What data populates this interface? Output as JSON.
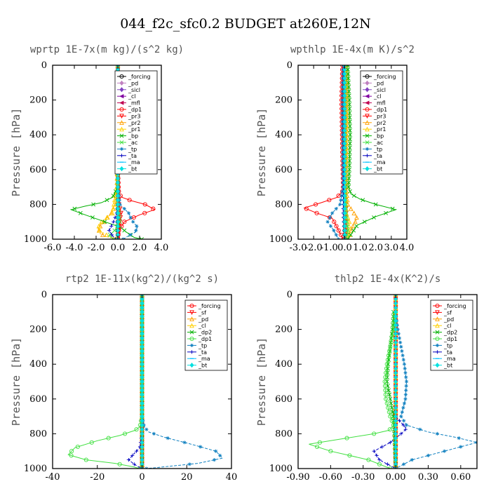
{
  "figure_title": "044_f2c_sfc0.2  BUDGET at260E,12N",
  "chart_data": [
    {
      "type": "line",
      "panel": "top-left",
      "title": "wprtp  1E-7x(m kg)/(s^2 kg)",
      "ylabel": "Pressure [hPa]",
      "xlim": [
        -6,
        4
      ],
      "ylim": [
        1000,
        0
      ],
      "xticks": [
        "-6.0",
        "-4.0",
        "-2.0",
        "0.0",
        "2.0",
        "4.0"
      ],
      "xtick_values": [
        -6,
        -4,
        -2,
        0,
        2,
        4
      ],
      "yticks": [
        "0",
        "200",
        "400",
        "600",
        "800",
        "1000"
      ],
      "ytick_values": [
        0,
        200,
        400,
        600,
        800,
        1000
      ],
      "legend": "top-right",
      "series": [
        {
          "name": "_forcing",
          "color": "#000000",
          "marker": "o",
          "x": [
            0,
            0,
            0,
            0
          ],
          "y": [
            0,
            300,
            700,
            1000
          ]
        },
        {
          "name": "_pd",
          "color": "#c080c0",
          "marker": "d",
          "x": [
            0,
            0
          ],
          "y": [
            0,
            1000
          ]
        },
        {
          "name": "_sicl",
          "color": "#8040c0",
          "marker": "d",
          "x": [
            0,
            0
          ],
          "y": [
            0,
            1000
          ]
        },
        {
          "name": "_cl",
          "color": "#8000a0",
          "marker": "<",
          "x": [
            0,
            0
          ],
          "y": [
            0,
            1000
          ]
        },
        {
          "name": "_mfl",
          "color": "#c00050",
          "marker": "<",
          "x": [
            0,
            0
          ],
          "y": [
            0,
            1000
          ]
        },
        {
          "name": "_dp1",
          "color": "#ff0000",
          "marker": "o",
          "x": [
            0,
            0,
            0.1,
            0.4,
            1.3,
            2.5,
            3.4,
            2.0,
            0.6,
            0.1,
            0
          ],
          "y": [
            0,
            600,
            740,
            760,
            780,
            800,
            830,
            860,
            900,
            950,
            1000
          ]
        },
        {
          "name": "_pr3",
          "color": "#ff0000",
          "marker": "v",
          "x": [
            0,
            0,
            0.1,
            0.3,
            0.2,
            0
          ],
          "y": [
            0,
            700,
            800,
            850,
            900,
            1000
          ]
        },
        {
          "name": "_pr2",
          "color": "#ffa000",
          "marker": "^",
          "x": [
            0,
            0,
            -0.1,
            -0.2,
            -0.6,
            -1.3,
            -1.8,
            -1.6,
            -0.8,
            -0.2
          ],
          "y": [
            0,
            500,
            700,
            800,
            850,
            900,
            940,
            970,
            990,
            1000
          ]
        },
        {
          "name": "_pr1",
          "color": "#ffd000",
          "marker": "^",
          "x": [
            0,
            0,
            -0.1,
            -0.5,
            -1.5,
            -1.9,
            -1.2,
            -0.5,
            -0.1
          ],
          "y": [
            0,
            400,
            700,
            850,
            900,
            940,
            970,
            990,
            1000
          ]
        },
        {
          "name": "_bp",
          "color": "#00b000",
          "marker": "x",
          "x": [
            0,
            0,
            -0.5,
            -1.5,
            -3.0,
            -4.3,
            -3.0,
            -1.2,
            0.2,
            0.8,
            1.5,
            2.2
          ],
          "y": [
            0,
            700,
            760,
            790,
            810,
            830,
            860,
            900,
            930,
            960,
            990,
            1000
          ]
        },
        {
          "name": "_ac",
          "color": "#40e040",
          "marker": "x",
          "x": [
            0,
            0,
            0.2,
            -0.3,
            -0.8,
            -0.4
          ],
          "y": [
            0,
            800,
            900,
            950,
            980,
            1000
          ]
        },
        {
          "name": "_tp",
          "color": "#1080c0",
          "marker": "*",
          "x": [
            0,
            0,
            0.2,
            1.0,
            1.2,
            1.4,
            1.8,
            1.6,
            1.0,
            0.5
          ],
          "y": [
            0,
            700,
            800,
            850,
            880,
            900,
            930,
            960,
            980,
            1000
          ]
        },
        {
          "name": "_ta",
          "color": "#0000c0",
          "marker": "+",
          "x": [
            0,
            0,
            -0.1,
            -0.4,
            -0.8,
            -0.5,
            -0.2
          ],
          "y": [
            0,
            800,
            850,
            900,
            950,
            980,
            1000
          ]
        },
        {
          "name": "_ma",
          "color": "#00c0ff",
          "marker": "-",
          "x": [
            0,
            0
          ],
          "y": [
            0,
            1000
          ]
        },
        {
          "name": "_bt",
          "color": "#00e0e0",
          "marker": "D",
          "x": [
            0,
            0
          ],
          "y": [
            0,
            1000
          ]
        }
      ]
    },
    {
      "type": "line",
      "panel": "top-right",
      "title": "wpthlp  1E-4x(m K)/s^2",
      "ylabel": "Pressure [hPa]",
      "xlim": [
        -3,
        4
      ],
      "ylim": [
        1000,
        0
      ],
      "xticks": [
        "-3.0",
        "-2.0",
        "-1.0",
        "0.0",
        "1.0",
        "2.0",
        "3.0",
        "4.0"
      ],
      "xtick_values": [
        -3,
        -2,
        -1,
        0,
        1,
        2,
        3,
        4
      ],
      "yticks": [
        "0",
        "200",
        "400",
        "600",
        "800",
        "1000"
      ],
      "ytick_values": [
        0,
        200,
        400,
        600,
        800,
        1000
      ],
      "legend": "top-right",
      "series": [
        {
          "name": "_forcing",
          "color": "#000000",
          "marker": "o",
          "x": [
            0,
            0
          ],
          "y": [
            0,
            1000
          ]
        },
        {
          "name": "_pd",
          "color": "#c080c0",
          "marker": "d",
          "x": [
            0,
            0
          ],
          "y": [
            0,
            1000
          ]
        },
        {
          "name": "_sicl",
          "color": "#8040c0",
          "marker": "d",
          "x": [
            0,
            0
          ],
          "y": [
            0,
            1000
          ]
        },
        {
          "name": "_cl",
          "color": "#8000a0",
          "marker": "<",
          "x": [
            -0.1,
            -0.1,
            -0.05,
            0
          ],
          "y": [
            0,
            200,
            600,
            1000
          ]
        },
        {
          "name": "_mfl",
          "color": "#c00050",
          "marker": "<",
          "x": [
            -0.1,
            -0.15,
            -0.1,
            -0.05,
            0
          ],
          "y": [
            0,
            200,
            400,
            700,
            1000
          ]
        },
        {
          "name": "_dp1",
          "color": "#ff0000",
          "marker": "o",
          "x": [
            -0.15,
            -0.2,
            -0.15,
            -0.1,
            -0.5,
            -1.5,
            -2.6,
            -1.8,
            -0.8,
            -0.1
          ],
          "y": [
            0,
            200,
            500,
            720,
            760,
            790,
            820,
            850,
            880,
            1000
          ]
        },
        {
          "name": "_pr3",
          "color": "#ff0000",
          "marker": "v",
          "x": [
            0,
            0,
            0.1,
            0
          ],
          "y": [
            0,
            700,
            850,
            1000
          ]
        },
        {
          "name": "_pr2",
          "color": "#ffa000",
          "marker": "^",
          "x": [
            0.1,
            0.15,
            0.1,
            0.2,
            0.6,
            0.8,
            0.5,
            0.2
          ],
          "y": [
            0,
            300,
            700,
            800,
            850,
            880,
            930,
            1000
          ]
        },
        {
          "name": "_pr1",
          "color": "#ffd000",
          "marker": "^",
          "x": [
            0.05,
            0.1,
            0.05,
            0.1,
            0.3,
            0.2
          ],
          "y": [
            0,
            300,
            700,
            850,
            900,
            1000
          ]
        },
        {
          "name": "_bp",
          "color": "#00b000",
          "marker": "x",
          "x": [
            0.2,
            0.3,
            0.35,
            0.3,
            0.25,
            0.4,
            1.0,
            2.0,
            3.3,
            2.0,
            0.8,
            0.2
          ],
          "y": [
            0,
            200,
            400,
            600,
            700,
            740,
            770,
            800,
            830,
            870,
            920,
            1000
          ]
        },
        {
          "name": "_ac",
          "color": "#40e040",
          "marker": "x",
          "x": [
            0,
            0,
            0.1,
            0.2,
            0.1
          ],
          "y": [
            0,
            700,
            850,
            950,
            1000
          ]
        },
        {
          "name": "_tp",
          "color": "#1080c0",
          "marker": "*",
          "x": [
            -0.1,
            -0.15,
            -0.1,
            -0.3,
            -0.8,
            -1.1,
            -0.7,
            -0.4
          ],
          "y": [
            0,
            200,
            700,
            800,
            850,
            900,
            950,
            1000
          ]
        },
        {
          "name": "_ta",
          "color": "#0000c0",
          "marker": "+",
          "x": [
            -0.05,
            -0.05,
            -0.1,
            0
          ],
          "y": [
            0,
            600,
            850,
            1000
          ]
        },
        {
          "name": "_ma",
          "color": "#00c0ff",
          "marker": "-",
          "x": [
            0,
            0
          ],
          "y": [
            0,
            1000
          ]
        },
        {
          "name": "_bt",
          "color": "#00e0e0",
          "marker": "D",
          "x": [
            0,
            0
          ],
          "y": [
            0,
            1000
          ]
        }
      ]
    },
    {
      "type": "line",
      "panel": "bottom-left",
      "title": "rtp2  1E-11x(kg^2)/(kg^2 s)",
      "ylabel": "Pressure [hPa]",
      "xlim": [
        -40,
        40
      ],
      "ylim": [
        1000,
        0
      ],
      "xticks": [
        "-40",
        "-20",
        "0",
        "20",
        "40"
      ],
      "xtick_values": [
        -40,
        -20,
        0,
        20,
        40
      ],
      "yticks": [
        "0",
        "200",
        "400",
        "600",
        "800",
        "1000"
      ],
      "ytick_values": [
        0,
        200,
        400,
        600,
        800,
        1000
      ],
      "legend": "top-right",
      "series": [
        {
          "name": "_forcing",
          "color": "#ff0000",
          "marker": "o",
          "x": [
            0,
            0
          ],
          "y": [
            0,
            1000
          ]
        },
        {
          "name": "_sf",
          "color": "#ff0000",
          "marker": "v",
          "x": [
            0,
            0
          ],
          "y": [
            0,
            1000
          ]
        },
        {
          "name": "_pd",
          "color": "#ffa000",
          "marker": "^",
          "x": [
            0,
            0
          ],
          "y": [
            0,
            1000
          ]
        },
        {
          "name": "_cl",
          "color": "#ffd000",
          "marker": "^",
          "x": [
            0,
            0
          ],
          "y": [
            0,
            1000
          ]
        },
        {
          "name": "_dp2",
          "color": "#00b000",
          "marker": "x",
          "x": [
            0,
            0
          ],
          "y": [
            0,
            1000
          ]
        },
        {
          "name": "_dp1",
          "color": "#40e040",
          "marker": "o",
          "x": [
            0,
            0,
            -1,
            -3,
            -10,
            -20,
            -30,
            -33,
            -25,
            -12,
            -4,
            -1
          ],
          "y": [
            0,
            700,
            760,
            780,
            810,
            840,
            880,
            920,
            950,
            970,
            990,
            1000
          ]
        },
        {
          "name": "_tp",
          "color": "#1080c0",
          "marker": "*",
          "x": [
            0,
            0,
            1,
            3,
            10,
            22,
            33,
            36,
            25,
            10,
            2
          ],
          "y": [
            0,
            700,
            760,
            790,
            820,
            860,
            900,
            940,
            970,
            990,
            1000
          ]
        },
        {
          "name": "_ta",
          "color": "#0000c0",
          "marker": "+",
          "x": [
            0,
            0,
            -1,
            -4,
            -6,
            -3,
            0
          ],
          "y": [
            0,
            800,
            880,
            920,
            950,
            980,
            1000
          ]
        },
        {
          "name": "_ma",
          "color": "#00c0ff",
          "marker": "-",
          "x": [
            0,
            0
          ],
          "y": [
            0,
            1000
          ]
        },
        {
          "name": "_bt",
          "color": "#00e0e0",
          "marker": "D",
          "x": [
            0,
            0
          ],
          "y": [
            0,
            1000
          ]
        }
      ]
    },
    {
      "type": "line",
      "panel": "bottom-right",
      "title": "thlp2  1E-4x(K^2)/s",
      "ylabel": "Pressure [hPa]",
      "xlim": [
        -0.9,
        0.75
      ],
      "ylim": [
        1000,
        0
      ],
      "xticks": [
        "-0.90",
        "-0.60",
        "-0.30",
        "0.00",
        "0.30",
        "0.60"
      ],
      "xtick_values": [
        -0.9,
        -0.6,
        -0.3,
        0,
        0.3,
        0.6
      ],
      "yticks": [
        "0",
        "200",
        "400",
        "600",
        "800",
        "1000"
      ],
      "ytick_values": [
        0,
        200,
        400,
        600,
        800,
        1000
      ],
      "legend": "top-right",
      "series": [
        {
          "name": "_forcing",
          "color": "#ff0000",
          "marker": "o",
          "x": [
            0,
            0
          ],
          "y": [
            0,
            1000
          ]
        },
        {
          "name": "_sf",
          "color": "#ff0000",
          "marker": "v",
          "x": [
            0,
            0
          ],
          "y": [
            0,
            1000
          ]
        },
        {
          "name": "_pd",
          "color": "#ffa000",
          "marker": "^",
          "x": [
            0,
            0
          ],
          "y": [
            0,
            1000
          ]
        },
        {
          "name": "_cl",
          "color": "#ffd000",
          "marker": "^",
          "x": [
            0,
            0
          ],
          "y": [
            0,
            1000
          ]
        },
        {
          "name": "_dp2",
          "color": "#00b000",
          "marker": "x",
          "x": [
            -0.02,
            -0.03,
            -0.05,
            -0.07,
            -0.08,
            -0.05,
            -0.02,
            0
          ],
          "y": [
            100,
            200,
            300,
            400,
            500,
            600,
            700,
            1000
          ]
        },
        {
          "name": "_dp1",
          "color": "#40e040",
          "marker": "o",
          "x": [
            0,
            -0.02,
            -0.05,
            -0.08,
            -0.1,
            -0.09,
            -0.05,
            -0.02,
            -0.06,
            -0.2,
            -0.5,
            -0.8,
            -0.6,
            -0.25,
            -0.05
          ],
          "y": [
            100,
            200,
            300,
            400,
            500,
            600,
            700,
            750,
            780,
            800,
            830,
            860,
            900,
            950,
            1000
          ]
        },
        {
          "name": "_tp",
          "color": "#1080c0",
          "marker": "*",
          "x": [
            0,
            0.02,
            0.05,
            0.08,
            0.1,
            0.09,
            0.05,
            0.1,
            0.3,
            0.55,
            0.75,
            0.45,
            0.15,
            0
          ],
          "y": [
            100,
            200,
            300,
            400,
            500,
            600,
            700,
            750,
            790,
            820,
            850,
            900,
            950,
            1000
          ]
        },
        {
          "name": "_ta",
          "color": "#0000c0",
          "marker": "+",
          "x": [
            0,
            0,
            0.1,
            0.05,
            -0.05,
            -0.2,
            -0.15,
            0
          ],
          "y": [
            0,
            700,
            770,
            800,
            850,
            900,
            950,
            1000
          ]
        },
        {
          "name": "_ma",
          "color": "#00c0ff",
          "marker": "-",
          "x": [
            0,
            0
          ],
          "y": [
            0,
            1000
          ]
        },
        {
          "name": "_bt",
          "color": "#00e0e0",
          "marker": "D",
          "x": [
            0,
            0
          ],
          "y": [
            0,
            1000
          ]
        }
      ]
    }
  ]
}
